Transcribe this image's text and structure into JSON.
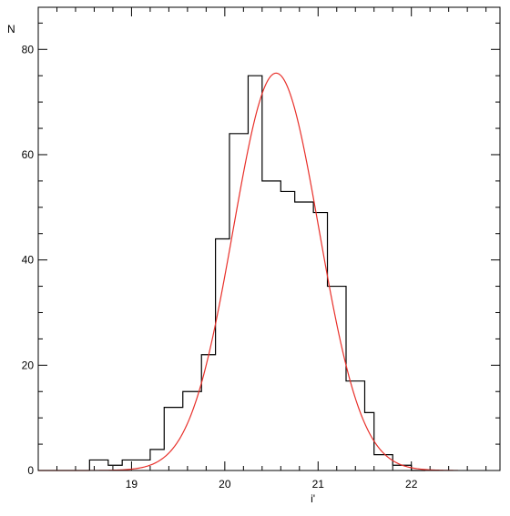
{
  "chart_data": {
    "type": "histogram",
    "xlabel": "i'",
    "ylabel": "N",
    "xlim": [
      18.0,
      22.95
    ],
    "ylim": [
      0,
      88
    ],
    "x_ticks": [
      19,
      20,
      21,
      22
    ],
    "y_ticks": [
      0,
      20,
      40,
      60,
      80
    ],
    "x_minor_step": 0.2,
    "y_minor_step": 5,
    "bin_edges": [
      18.55,
      18.75,
      18.9,
      19.05,
      19.2,
      19.35,
      19.55,
      19.75,
      19.9,
      20.05,
      20.25,
      20.4,
      20.6,
      20.75,
      20.95,
      21.1,
      21.3,
      21.5,
      21.6,
      21.8,
      22.0,
      22.15
    ],
    "counts": [
      2,
      1,
      2,
      2,
      4,
      12,
      15,
      22,
      44,
      64,
      75,
      55,
      53,
      51,
      49,
      35,
      17,
      11,
      3,
      1,
      0
    ],
    "fit": {
      "name": "Gaussian fit",
      "color": "#e8302a",
      "amplitude": 75.5,
      "mean": 20.55,
      "sigma": 0.46,
      "x_range": [
        18.0,
        22.5
      ]
    },
    "histogram_color": "#000000"
  }
}
